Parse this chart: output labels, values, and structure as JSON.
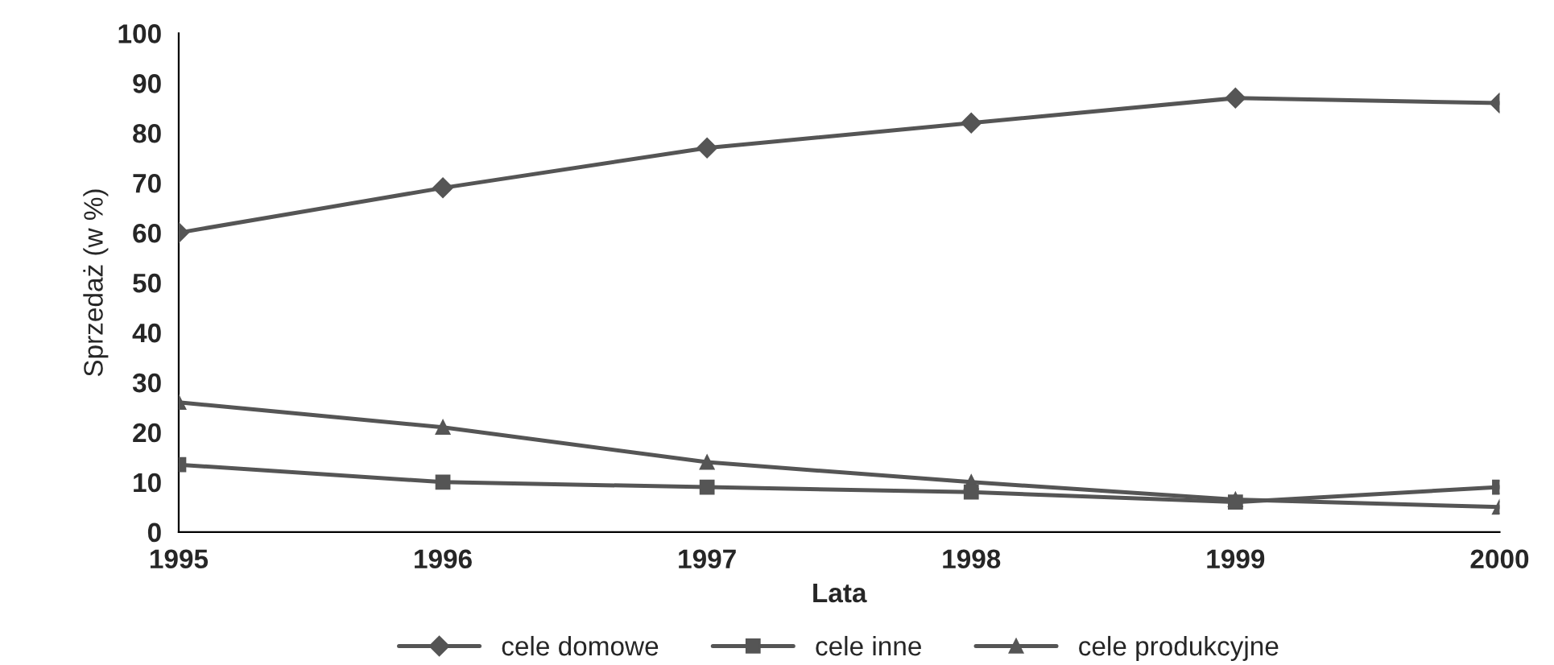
{
  "chart_data": {
    "type": "line",
    "xlabel": "Lata",
    "ylabel": "Sprzedaż (w %)",
    "x": [
      1995,
      1996,
      1997,
      1998,
      1999,
      2000
    ],
    "xlim": [
      1995,
      2000
    ],
    "xticks": [
      1995,
      1996,
      1997,
      1998,
      1999,
      2000
    ],
    "ylim": [
      0,
      100
    ],
    "yticks": [
      0,
      10,
      20,
      30,
      40,
      50,
      60,
      70,
      80,
      90,
      100
    ],
    "grid": false,
    "legend": "bottom",
    "line_style": "solid",
    "series": [
      {
        "name": "cele domowe",
        "color": "#555555",
        "marker": "diamond",
        "values": [
          60,
          69,
          77,
          82,
          87,
          86
        ]
      },
      {
        "name": "cele inne",
        "color": "#555555",
        "marker": "square",
        "values": [
          13.5,
          10,
          9,
          8,
          6,
          9
        ]
      },
      {
        "name": "cele produkcyjne",
        "color": "#555555",
        "marker": "triangle",
        "values": [
          26,
          21,
          14,
          10,
          6.5,
          5
        ]
      }
    ]
  }
}
